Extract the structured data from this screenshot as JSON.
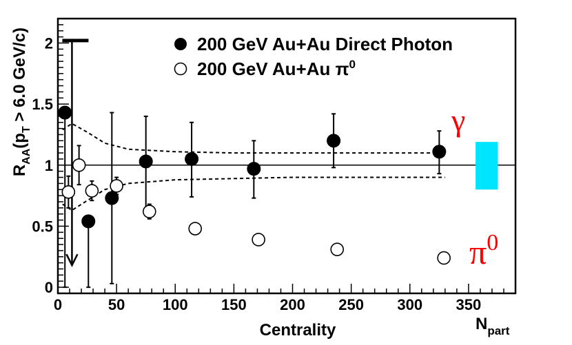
{
  "chart_data": {
    "type": "scatter",
    "xlabel": "Centrality",
    "x_unit_label": "N",
    "x_unit_sub": "part",
    "ylabel_main": "R",
    "ylabel_sub1": "AA",
    "ylabel_mid": "(p",
    "ylabel_sub2": "T",
    "ylabel_end": " > 6.0 GeV/c)",
    "xlim": [
      0,
      390
    ],
    "ylim": [
      -0.05,
      2.2
    ],
    "x_ticks": [
      0,
      50,
      100,
      150,
      200,
      250,
      300,
      350
    ],
    "y_ticks": [
      0,
      0.5,
      1,
      1.5,
      2
    ],
    "y_tick_labels": [
      "0",
      "0.5",
      "1",
      "1.5",
      "2"
    ],
    "reference_line": 1,
    "series": [
      {
        "name": "200 GeV Au+Au Direct Photon",
        "marker": "filled-circle",
        "points": [
          {
            "x": 6,
            "y": 1.43,
            "err_lo": 1.43,
            "err_hi": 0.0
          },
          {
            "x": 26,
            "y": 0.54,
            "err_lo": 0.54,
            "err_hi": 0.0
          },
          {
            "x": 46,
            "y": 0.73,
            "err_lo": 0.7,
            "err_hi": 0.7
          },
          {
            "x": 75,
            "y": 1.03,
            "err_lo": 0.42,
            "err_hi": 0.37
          },
          {
            "x": 114,
            "y": 1.05,
            "err_lo": 0.31,
            "err_hi": 0.3
          },
          {
            "x": 167,
            "y": 0.97,
            "err_lo": 0.24,
            "err_hi": 0.23
          },
          {
            "x": 235,
            "y": 1.2,
            "err_lo": 0.22,
            "err_hi": 0.22
          },
          {
            "x": 325,
            "y": 1.11,
            "err_lo": 0.18,
            "err_hi": 0.17
          }
        ]
      },
      {
        "name": "200 GeV Au+Au π0",
        "marker": "open-circle",
        "points": [
          {
            "x": 9,
            "y": 0.78,
            "err_lo": 0.13,
            "err_hi": 0.13
          },
          {
            "x": 18,
            "y": 1.0,
            "err_lo": 0.16,
            "err_hi": 0.16
          },
          {
            "x": 29,
            "y": 0.79,
            "err_lo": 0.08,
            "err_hi": 0.08
          },
          {
            "x": 50,
            "y": 0.83,
            "err_lo": 0.07,
            "err_hi": 0.07
          },
          {
            "x": 78,
            "y": 0.62,
            "err_lo": 0.06,
            "err_hi": 0.06
          },
          {
            "x": 117,
            "y": 0.48,
            "err_lo": 0.0,
            "err_hi": 0.0
          },
          {
            "x": 171,
            "y": 0.39,
            "err_lo": 0.0,
            "err_hi": 0.0
          },
          {
            "x": 238,
            "y": 0.31,
            "err_lo": 0.0,
            "err_hi": 0.0
          },
          {
            "x": 329,
            "y": 0.24,
            "err_lo": 0.0,
            "err_hi": 0.0
          }
        ]
      }
    ],
    "upper_limit_arrow": {
      "x": 12,
      "y_top": 2.02,
      "y_bottom": 0.18
    },
    "band_upper": [
      [
        4,
        1.29
      ],
      [
        12,
        1.34
      ],
      [
        25,
        1.27
      ],
      [
        40,
        1.18
      ],
      [
        60,
        1.13
      ],
      [
        100,
        1.11
      ],
      [
        150,
        1.1
      ],
      [
        200,
        1.1
      ],
      [
        250,
        1.1
      ],
      [
        330,
        1.1
      ]
    ],
    "band_lower": [
      [
        4,
        0.68
      ],
      [
        12,
        0.63
      ],
      [
        25,
        0.71
      ],
      [
        40,
        0.8
      ],
      [
        60,
        0.85
      ],
      [
        100,
        0.88
      ],
      [
        150,
        0.89
      ],
      [
        200,
        0.9
      ],
      [
        250,
        0.9
      ],
      [
        330,
        0.9
      ]
    ],
    "normalization_box": {
      "x_low": 356,
      "x_high": 375,
      "y_low": 0.8,
      "y_high": 1.19,
      "color": "#00e5ff"
    },
    "annotations": {
      "gamma": "γ",
      "pi_base": "π",
      "pi_sup": "0"
    },
    "legend": {
      "photon_label": "200 GeV Au+Au Direct Photon",
      "pi0_label": "200 GeV Au+Au π",
      "pi0_sup": "0"
    }
  }
}
